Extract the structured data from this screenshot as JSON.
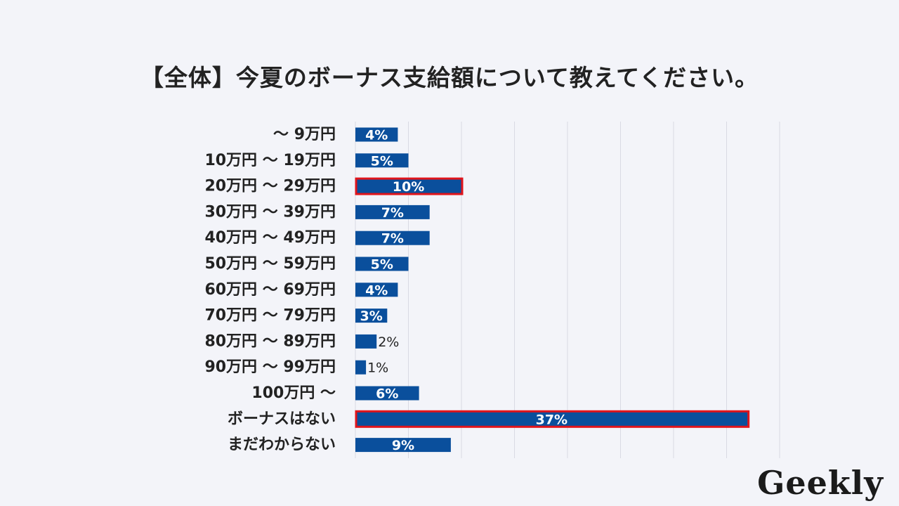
{
  "chart_data": {
    "type": "bar",
    "orientation": "horizontal",
    "title": "【全体】今夏のボーナス支給額について教えてください。",
    "categories": [
      "～ 9万円",
      "10万円 ～ 19万円",
      "20万円 ～ 29万円",
      "30万円 ～ 39万円",
      "40万円 ～ 49万円",
      "50万円 ～ 59万円",
      "60万円 ～ 69万円",
      "70万円 ～ 79万円",
      "80万円 ～ 89万円",
      "90万円 ～ 99万円",
      "100万円 ～",
      "ボーナスはない",
      "まだわからない"
    ],
    "values": [
      4,
      5,
      10,
      7,
      7,
      5,
      4,
      3,
      2,
      1,
      6,
      37,
      9
    ],
    "value_labels": [
      "4%",
      "5%",
      "10%",
      "7%",
      "7%",
      "5%",
      "4%",
      "3%",
      "2%",
      "1%",
      "6%",
      "37%",
      "9%"
    ],
    "highlighted": [
      "20万円 ～ 29万円",
      "ボーナスはない"
    ],
    "xlim": [
      0,
      40
    ],
    "grid": true,
    "bar_color": "#0a4f9c",
    "highlight_color": "#e0141b"
  },
  "logo": "Geekly"
}
